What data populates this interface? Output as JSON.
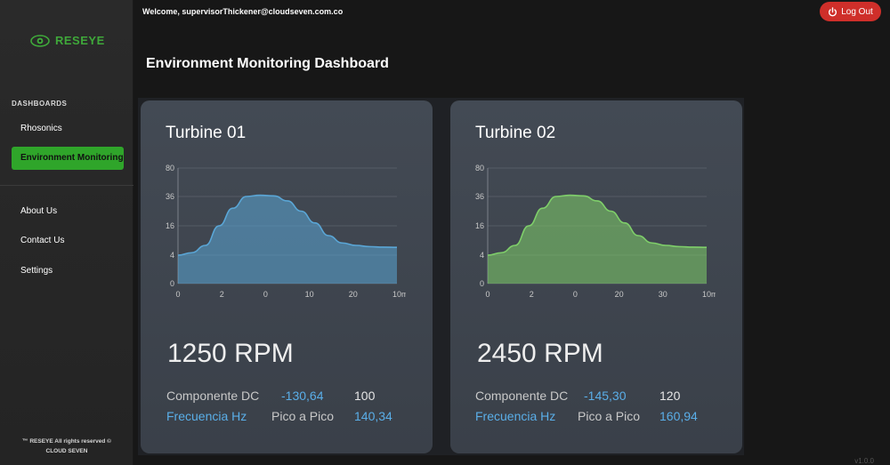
{
  "header": {
    "welcome": "Welcome, supervisorThickener@cloudseven.com.co",
    "logout_label": "Log Out"
  },
  "sidebar": {
    "logo_text": "RESEYE",
    "section_label": "DASHBOARDS",
    "items": [
      {
        "label": "Rhosonics"
      },
      {
        "label": "Environment Monitoring"
      },
      {
        "label": "About Us"
      },
      {
        "label": "Contact Us"
      },
      {
        "label": "Settings"
      }
    ],
    "footer_line1": "™ RESEYE All rights reserved ©",
    "footer_line2": "CLOUD SEVEN"
  },
  "main": {
    "title": "Environment Monitoring Dashboard"
  },
  "turbines": [
    {
      "name": "Turbine 01",
      "rpm": "1250 RPM",
      "dc_label": "Componente DC",
      "dc_value": "-130,64",
      "dc_extra": "100",
      "freq_label": "Frecuencia Hz",
      "peak_label": "Pico a Pico",
      "peak_value": "140,34",
      "chart_data": {
        "type": "area",
        "color": "#5aa6d6",
        "y_ticks": [
          "0",
          "4",
          "16",
          "36",
          "80"
        ],
        "x_ticks": [
          "0",
          "2",
          "0",
          "10",
          "20",
          "10"
        ],
        "x_unit": "m",
        "values": [
          4,
          5,
          8,
          16,
          28,
          36,
          38,
          37,
          33,
          26,
          18,
          12,
          9,
          8,
          7.5,
          7.3,
          7.2
        ]
      }
    },
    {
      "name": "Turbine 02",
      "rpm": "2450 RPM",
      "dc_label": "Componente DC",
      "dc_value": "-145,30",
      "dc_extra": "120",
      "freq_label": "Frecuencia Hz",
      "peak_label": "Pico a Pico",
      "peak_value": "160,94",
      "chart_data": {
        "type": "area",
        "color": "#7fcf6a",
        "y_ticks": [
          "0",
          "4",
          "16",
          "36",
          "80"
        ],
        "x_ticks": [
          "0",
          "2",
          "0",
          "20",
          "30",
          "10"
        ],
        "x_unit": "m",
        "values": [
          4,
          5,
          8,
          16,
          28,
          36,
          38,
          37,
          33,
          26,
          18,
          12,
          9,
          8,
          7.5,
          7.3,
          7.2
        ]
      }
    }
  ],
  "version": "v1.0.0"
}
